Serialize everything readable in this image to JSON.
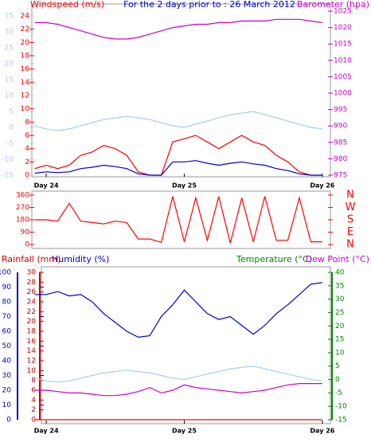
{
  "chart_data": [
    {
      "type": "line",
      "title": "For the 2 days prior to : 26 March 2012",
      "xlim": [
        -2.5,
        49.4
      ],
      "xticks": [
        {
          "value": 0,
          "label": "Day 24"
        },
        {
          "value": 24,
          "label": "Day 25"
        },
        {
          "value": 48,
          "label": "Day 26"
        }
      ],
      "x": [
        -2,
        0,
        2,
        4,
        6,
        8,
        10,
        12,
        14,
        16,
        18,
        20,
        22,
        24,
        26,
        28,
        30,
        32,
        34,
        36,
        38,
        40,
        42,
        44,
        46,
        48
      ],
      "axes": [
        {
          "label": "Windspeed (m/s)",
          "color": "#ff0000",
          "side": "left",
          "lim": [
            0,
            24
          ],
          "ticks": [
            0,
            2,
            4,
            6,
            8,
            10,
            12,
            14,
            16,
            18,
            20,
            22,
            24
          ]
        },
        {
          "color": "#a8cff0",
          "side": "left",
          "lim": [
            -15,
            35
          ],
          "ticks": [
            -15,
            -10,
            -5,
            0,
            5,
            10,
            15,
            20,
            25,
            30,
            35
          ]
        },
        {
          "label": "Barometer (hpa)",
          "color": "#cc00cc",
          "side": "right",
          "lim": [
            975,
            1025
          ],
          "ticks": [
            975,
            980,
            985,
            990,
            995,
            1000,
            1005,
            1010,
            1015,
            1020,
            1025
          ]
        }
      ],
      "series": [
        {
          "color": "#a8cff0",
          "axis": 1,
          "values": [
            0.5,
            -0.5,
            -1,
            -0.5,
            0.5,
            1.5,
            2.5,
            3,
            3.5,
            3,
            2.5,
            1.5,
            0.5,
            0,
            1,
            2,
            3,
            4,
            4.5,
            5,
            4,
            3,
            2,
            1,
            0,
            -0.5
          ]
        },
        {
          "color": "#cc00cc",
          "axis": 2,
          "values": [
            1021.5,
            1021.5,
            1021,
            1020,
            1019,
            1018,
            1017,
            1016.5,
            1016.5,
            1017,
            1018,
            1019,
            1020,
            1020.5,
            1021,
            1021,
            1021.5,
            1021.5,
            1022,
            1022,
            1022,
            1022.5,
            1022.5,
            1022.5,
            1022,
            1021.5
          ]
        },
        {
          "color": "#ff0000",
          "axis": 0,
          "values": [
            1,
            1.5,
            1,
            1.5,
            3,
            3.5,
            4.5,
            4,
            3,
            0.5,
            0,
            0,
            5,
            5.5,
            6,
            5,
            4,
            5,
            6,
            5,
            4.5,
            3,
            2,
            0.5,
            0,
            0
          ]
        },
        {
          "color": "#0000cc",
          "axis": 0,
          "values": [
            0.3,
            0.5,
            0.4,
            0.5,
            1,
            1.2,
            1.5,
            1.3,
            1,
            0.2,
            0,
            0,
            2,
            2,
            2.2,
            1.8,
            1.5,
            1.8,
            2,
            1.7,
            1.5,
            1,
            0.7,
            0.2,
            0,
            0
          ]
        }
      ]
    },
    {
      "type": "line",
      "xlim": [
        -2.5,
        49.4
      ],
      "x": [
        -2,
        0,
        2,
        4,
        6,
        8,
        10,
        12,
        14,
        16,
        18,
        20,
        22,
        24,
        26,
        28,
        30,
        32,
        34,
        36,
        38,
        40,
        42,
        44,
        46,
        48
      ],
      "axes": [
        {
          "color": "#ff0000",
          "side": "left",
          "lim": [
            0,
            360
          ],
          "ticks": [
            0,
            90,
            180,
            270,
            360
          ]
        },
        {
          "color": "#ff0000",
          "side": "right",
          "lim": [
            0,
            360
          ],
          "ticks": [
            {
              "value": 0,
              "label": "N"
            },
            {
              "value": 90,
              "label": "E"
            },
            {
              "value": 180,
              "label": "S"
            },
            {
              "value": 270,
              "label": "W"
            },
            {
              "value": 360,
              "label": "N"
            }
          ]
        }
      ],
      "series": [
        {
          "color": "#ff0000",
          "axis": 0,
          "values": [
            180,
            180,
            170,
            300,
            170,
            160,
            150,
            170,
            160,
            40,
            40,
            15,
            350,
            20,
            340,
            30,
            350,
            10,
            340,
            20,
            350,
            30,
            30,
            340,
            20,
            20
          ]
        }
      ]
    },
    {
      "type": "line",
      "xlim": [
        -2.5,
        49.4
      ],
      "xticks": [
        {
          "value": 0,
          "label": "Day 24"
        },
        {
          "value": 24,
          "label": "Day 25"
        },
        {
          "value": 48,
          "label": "Day 26"
        }
      ],
      "x": [
        -2,
        0,
        2,
        4,
        6,
        8,
        10,
        12,
        14,
        16,
        18,
        20,
        22,
        24,
        26,
        28,
        30,
        32,
        34,
        36,
        38,
        40,
        42,
        44,
        46,
        48
      ],
      "axes": [
        {
          "label": "Humidity (%)",
          "color": "#0000cc",
          "side": "left",
          "lim": [
            0,
            100
          ],
          "ticks": [
            0,
            10,
            20,
            30,
            40,
            50,
            60,
            70,
            80,
            90,
            100
          ]
        },
        {
          "label": "Rainfall (mm)",
          "color": "#cc0000",
          "side": "left",
          "lim": [
            0,
            30
          ],
          "ticks": [
            0,
            2,
            4,
            6,
            8,
            10,
            12,
            14,
            16,
            18,
            20,
            22,
            24,
            26,
            28,
            30
          ]
        },
        {
          "label": "Temperature (°C)",
          "color": "#008800",
          "side": "right",
          "lim": [
            -15,
            40
          ],
          "ticks": [
            -15,
            -10,
            -5,
            0,
            5,
            10,
            15,
            20,
            25,
            30,
            35,
            40
          ]
        },
        {
          "label": "Dew Point (°C)",
          "color": "#cc00cc",
          "side": "right",
          "lim": [
            -15,
            40
          ]
        }
      ],
      "series": [
        {
          "color": "#0000cc",
          "axis": 0,
          "values": [
            85,
            85,
            87,
            84,
            85,
            80,
            72,
            66,
            60,
            56,
            57,
            70,
            78,
            88,
            80,
            72,
            68,
            70,
            64,
            58,
            64,
            72,
            78,
            85,
            92,
            93
          ]
        },
        {
          "color": "#a8cff0",
          "axis": 2,
          "values": [
            0.5,
            -0.5,
            -1,
            -0.5,
            0.5,
            1.5,
            2.5,
            3,
            3.5,
            3,
            2.5,
            1.5,
            0.5,
            0,
            1,
            2,
            3,
            4,
            4.5,
            5,
            4,
            3,
            2,
            1,
            0,
            -0.5
          ]
        },
        {
          "color": "#cc00cc",
          "axis": 3,
          "values": [
            -4,
            -4,
            -4.5,
            -5,
            -5,
            -5.5,
            -6,
            -6,
            -5.5,
            -4.5,
            -3,
            -5,
            -4,
            -2,
            -3,
            -3.5,
            -4,
            -4.5,
            -5,
            -4.5,
            -4,
            -3,
            -2,
            -1.5,
            -1.5,
            -1.5
          ]
        },
        {
          "color": "#ff0000",
          "axis": 1,
          "values": [
            0,
            0,
            0,
            0,
            0,
            0,
            0,
            0,
            0,
            0,
            0,
            0,
            0,
            0,
            0,
            0,
            0,
            0,
            0,
            0,
            0,
            0,
            0,
            0,
            0,
            0
          ]
        }
      ]
    }
  ]
}
